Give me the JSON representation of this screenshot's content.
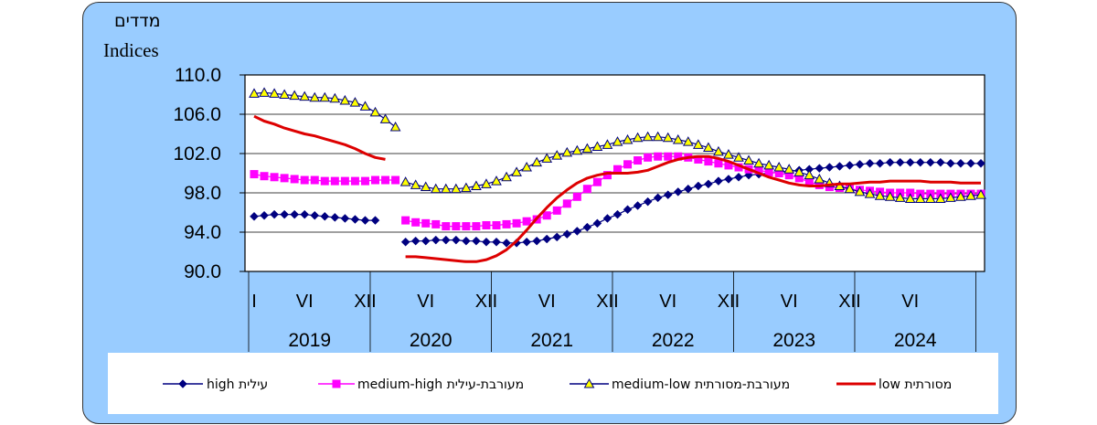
{
  "chart_data": {
    "type": "line",
    "title_hebrew": "מדדים",
    "title_english": "Indices",
    "yticks": [
      "110.0",
      "106.0",
      "102.0",
      "98.0",
      "94.0",
      "90.0"
    ],
    "ylim": [
      90,
      110
    ],
    "xlim": [
      0,
      72
    ],
    "month_ticks": [
      {
        "label": "I",
        "t": 0
      },
      {
        "label": "VI",
        "t": 5
      },
      {
        "label": "XII",
        "t": 11
      },
      {
        "label": "VI",
        "t": 17
      },
      {
        "label": "XII",
        "t": 23
      },
      {
        "label": "VI",
        "t": 29
      },
      {
        "label": "XII",
        "t": 35
      },
      {
        "label": "VI",
        "t": 41
      },
      {
        "label": "XII",
        "t": 47
      },
      {
        "label": "VI",
        "t": 53
      },
      {
        "label": "XII",
        "t": 59
      },
      {
        "label": "VI",
        "t": 65
      }
    ],
    "years": [
      {
        "label": "2019",
        "start": 0,
        "end": 12
      },
      {
        "label": "2020",
        "start": 12,
        "end": 24
      },
      {
        "label": "2021",
        "start": 24,
        "end": 36
      },
      {
        "label": "2022",
        "start": 36,
        "end": 48
      },
      {
        "label": "2023",
        "start": 48,
        "end": 60
      },
      {
        "label": "2024",
        "start": 60,
        "end": 72
      }
    ],
    "series": [
      {
        "name": "high",
        "legend": "עילית high",
        "color": "#000080",
        "marker": "diamond",
        "segments": [
          {
            "start": 0,
            "values": [
              95.6,
              95.7,
              95.8,
              95.8,
              95.8,
              95.8,
              95.7,
              95.6,
              95.5,
              95.4,
              95.3,
              95.2,
              95.2
            ]
          },
          {
            "start": 15,
            "values": [
              93.0,
              93.1,
              93.1,
              93.2,
              93.2,
              93.2,
              93.1,
              93.1,
              93.0,
              93.0,
              92.9,
              92.9,
              93.0,
              93.1,
              93.3,
              93.5,
              93.8,
              94.1,
              94.5,
              94.9,
              95.4,
              95.8,
              96.3,
              96.7,
              97.1,
              97.5,
              97.8,
              98.1,
              98.4,
              98.7,
              98.9,
              99.2,
              99.4,
              99.6,
              99.8,
              99.9,
              100.0,
              100.1,
              100.2,
              100.3,
              100.4,
              100.5,
              100.6,
              100.7,
              100.8,
              100.9,
              101.0,
              101.0,
              101.1,
              101.1,
              101.1,
              101.1,
              101.1,
              101.1,
              101.0,
              101.0,
              101.0,
              101.0
            ]
          }
        ]
      },
      {
        "name": "medium-high",
        "legend": "מעורבת-עילית medium-high",
        "color": "#ff00ff",
        "marker": "square",
        "segments": [
          {
            "start": 0,
            "values": [
              99.9,
              99.7,
              99.6,
              99.5,
              99.4,
              99.3,
              99.3,
              99.2,
              99.2,
              99.2,
              99.2,
              99.2,
              99.3,
              99.3,
              99.3
            ]
          },
          {
            "start": 15,
            "values": [
              95.2,
              95.0,
              94.9,
              94.8,
              94.6,
              94.6,
              94.6,
              94.6,
              94.7,
              94.7,
              94.8,
              94.9,
              95.1,
              95.3,
              95.7,
              96.2,
              96.9,
              97.6,
              98.4,
              99.1,
              99.8,
              100.4,
              100.9,
              101.3,
              101.6,
              101.7,
              101.7,
              101.7,
              101.6,
              101.4,
              101.2,
              101.0,
              100.8,
              100.6,
              100.4,
              100.3,
              100.1,
              100.0,
              99.8,
              99.5,
              99.1,
              98.8,
              98.6,
              98.5,
              98.4,
              98.3,
              98.2,
              98.1,
              98.0,
              98.0,
              98.0,
              97.9,
              97.9,
              97.9,
              97.9,
              97.9,
              97.9,
              97.9
            ]
          }
        ]
      },
      {
        "name": "medium-low",
        "legend": "מעורבת-מסורתית medium-low",
        "color": "#000080",
        "fill": "#ffff00",
        "marker": "triangle",
        "segments": [
          {
            "start": 0,
            "values": [
              108.1,
              108.2,
              108.1,
              108.0,
              107.9,
              107.8,
              107.7,
              107.7,
              107.6,
              107.4,
              107.2,
              106.8,
              106.2,
              105.5,
              104.7
            ]
          },
          {
            "start": 15,
            "values": [
              99.1,
              98.8,
              98.6,
              98.4,
              98.4,
              98.4,
              98.5,
              98.7,
              98.9,
              99.2,
              99.6,
              100.1,
              100.6,
              101.1,
              101.5,
              101.8,
              102.1,
              102.3,
              102.5,
              102.7,
              102.9,
              103.2,
              103.4,
              103.6,
              103.7,
              103.7,
              103.6,
              103.4,
              103.2,
              102.9,
              102.6,
              102.2,
              101.9,
              101.6,
              101.3,
              101.0,
              100.8,
              100.6,
              100.4,
              100.1,
              99.8,
              99.4,
              99.0,
              98.7,
              98.4,
              98.1,
              97.9,
              97.7,
              97.6,
              97.5,
              97.4,
              97.4,
              97.4,
              97.4,
              97.5,
              97.6,
              97.7,
              97.8
            ]
          }
        ]
      },
      {
        "name": "low",
        "legend": "מסורתית low",
        "color": "#dd0000",
        "marker": "none",
        "segments": [
          {
            "start": 0,
            "values": [
              105.8,
              105.3,
              105.0,
              104.6,
              104.3,
              104.0,
              103.8,
              103.5,
              103.2,
              102.9,
              102.5,
              102.0,
              101.6,
              101.4
            ]
          },
          {
            "start": 15,
            "values": [
              91.5,
              91.5,
              91.4,
              91.3,
              91.2,
              91.1,
              91.0,
              91.0,
              91.2,
              91.6,
              92.2,
              93.1,
              94.2,
              95.4,
              96.5,
              97.5,
              98.3,
              99.0,
              99.5,
              99.8,
              100.0,
              100.0,
              100.0,
              100.1,
              100.3,
              100.7,
              101.1,
              101.4,
              101.6,
              101.7,
              101.7,
              101.5,
              101.2,
              100.8,
              100.4,
              100.0,
              99.6,
              99.3,
              99.0,
              98.8,
              98.7,
              98.7,
              98.8,
              98.9,
              98.9,
              99.0,
              99.1,
              99.1,
              99.2,
              99.2,
              99.2,
              99.2,
              99.1,
              99.1,
              99.1,
              99.0,
              99.0,
              99.0
            ]
          }
        ]
      }
    ]
  }
}
